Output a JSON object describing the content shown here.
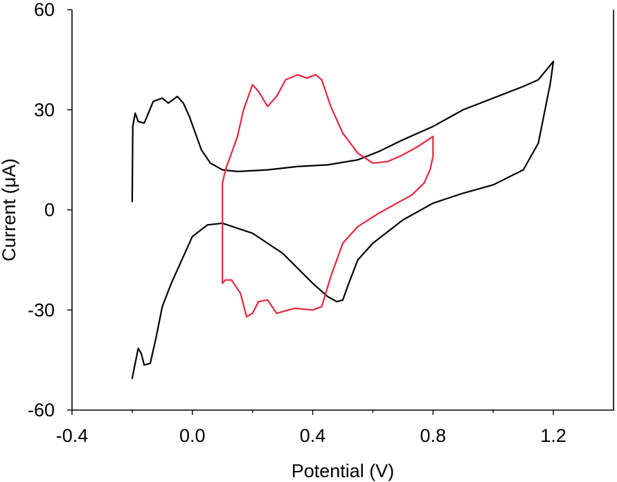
{
  "chart_data": {
    "type": "line",
    "xlabel": "Potential (V)",
    "ylabel": "Current (μA)",
    "xlim": [
      -0.4,
      1.4
    ],
    "ylim": [
      -60,
      60
    ],
    "x_ticks": [
      {
        "value": -0.4,
        "label": "-0.4"
      },
      {
        "value": 0.0,
        "label": "0.0"
      },
      {
        "value": 0.4,
        "label": "0.4"
      },
      {
        "value": 0.8,
        "label": "0.8"
      },
      {
        "value": 1.2,
        "label": "1.2"
      }
    ],
    "x_minor_ticks": [
      -0.2,
      0.2,
      0.6,
      1.0
    ],
    "y_ticks": [
      {
        "value": 60,
        "label": "60"
      },
      {
        "value": 30,
        "label": "30"
      },
      {
        "value": 0,
        "label": "0"
      },
      {
        "value": -30,
        "label": "-30"
      },
      {
        "value": -60,
        "label": "-60"
      }
    ],
    "grid": false,
    "legend": "none",
    "series": [
      {
        "color": "#000000",
        "points": [
          [
            -0.2,
            2.5
          ],
          [
            -0.198,
            25
          ],
          [
            -0.19,
            29
          ],
          [
            -0.18,
            26.5
          ],
          [
            -0.16,
            26
          ],
          [
            -0.13,
            32.5
          ],
          [
            -0.1,
            33.5
          ],
          [
            -0.08,
            32
          ],
          [
            -0.05,
            34
          ],
          [
            -0.03,
            32
          ],
          [
            -0.01,
            28
          ],
          [
            0.01,
            23
          ],
          [
            0.03,
            18
          ],
          [
            0.06,
            14
          ],
          [
            0.1,
            12
          ],
          [
            0.15,
            11.5
          ],
          [
            0.25,
            12
          ],
          [
            0.35,
            13
          ],
          [
            0.45,
            13.5
          ],
          [
            0.55,
            15
          ],
          [
            0.62,
            17.5
          ],
          [
            0.7,
            21
          ],
          [
            0.8,
            25
          ],
          [
            0.9,
            30
          ],
          [
            1.0,
            33.5
          ],
          [
            1.1,
            37
          ],
          [
            1.15,
            39
          ],
          [
            1.2,
            44.5
          ],
          [
            1.19,
            38
          ],
          [
            1.15,
            20
          ],
          [
            1.1,
            12
          ],
          [
            1.0,
            7.5
          ],
          [
            0.9,
            5
          ],
          [
            0.8,
            2
          ],
          [
            0.7,
            -3
          ],
          [
            0.6,
            -10
          ],
          [
            0.55,
            -15
          ],
          [
            0.52,
            -22
          ],
          [
            0.5,
            -27
          ],
          [
            0.48,
            -27.5
          ],
          [
            0.45,
            -26
          ],
          [
            0.4,
            -22
          ],
          [
            0.3,
            -13
          ],
          [
            0.2,
            -7
          ],
          [
            0.1,
            -4
          ],
          [
            0.05,
            -4.5
          ],
          [
            0.0,
            -8
          ],
          [
            -0.03,
            -14
          ],
          [
            -0.07,
            -22
          ],
          [
            -0.1,
            -29
          ],
          [
            -0.12,
            -38
          ],
          [
            -0.14,
            -46
          ],
          [
            -0.16,
            -46.5
          ],
          [
            -0.17,
            -43
          ],
          [
            -0.18,
            -41.5
          ],
          [
            -0.19,
            -46
          ],
          [
            -0.2,
            -50.5
          ]
        ]
      },
      {
        "color": "#e8243c",
        "points": [
          [
            0.1,
            -22
          ],
          [
            0.1,
            -5
          ],
          [
            0.1,
            8
          ],
          [
            0.11,
            12
          ],
          [
            0.13,
            17
          ],
          [
            0.15,
            22
          ],
          [
            0.17,
            30
          ],
          [
            0.2,
            37.5
          ],
          [
            0.22,
            35.5
          ],
          [
            0.25,
            31
          ],
          [
            0.28,
            34
          ],
          [
            0.31,
            39
          ],
          [
            0.35,
            40.5
          ],
          [
            0.38,
            39.5
          ],
          [
            0.41,
            40.5
          ],
          [
            0.43,
            39
          ],
          [
            0.46,
            31
          ],
          [
            0.5,
            23
          ],
          [
            0.55,
            17
          ],
          [
            0.6,
            14
          ],
          [
            0.65,
            14.5
          ],
          [
            0.7,
            16.5
          ],
          [
            0.75,
            19
          ],
          [
            0.8,
            22
          ],
          [
            0.8,
            16
          ],
          [
            0.79,
            12
          ],
          [
            0.77,
            8
          ],
          [
            0.73,
            4.5
          ],
          [
            0.68,
            2
          ],
          [
            0.62,
            -1
          ],
          [
            0.55,
            -5
          ],
          [
            0.5,
            -10
          ],
          [
            0.46,
            -20
          ],
          [
            0.43,
            -29
          ],
          [
            0.4,
            -30
          ],
          [
            0.34,
            -29.5
          ],
          [
            0.28,
            -31
          ],
          [
            0.25,
            -27
          ],
          [
            0.22,
            -27.5
          ],
          [
            0.2,
            -31
          ],
          [
            0.18,
            -32
          ],
          [
            0.16,
            -25
          ],
          [
            0.13,
            -21
          ],
          [
            0.11,
            -21
          ],
          [
            0.1,
            -22
          ]
        ]
      }
    ]
  }
}
